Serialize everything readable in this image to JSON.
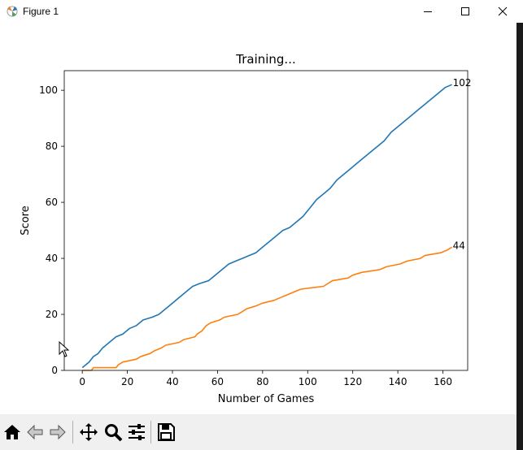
{
  "window": {
    "title": "Figure 1",
    "minimize_icon": "minimize-icon",
    "maximize_icon": "maximize-icon",
    "close_icon": "close-icon"
  },
  "chart_data": {
    "type": "line",
    "title": "Training...",
    "xlabel": "Number of Games",
    "ylabel": "Score",
    "xlim": [
      -8,
      171
    ],
    "ylim": [
      0,
      107
    ],
    "xticks": [
      0,
      20,
      40,
      60,
      80,
      100,
      120,
      140,
      160
    ],
    "yticks": [
      0,
      20,
      40,
      60,
      80,
      100
    ],
    "grid": false,
    "series": [
      {
        "color": "#1f77b4",
        "end_label": "102",
        "points": [
          [
            0,
            1
          ],
          [
            3,
            3
          ],
          [
            5,
            5
          ],
          [
            7,
            6
          ],
          [
            9,
            8
          ],
          [
            12,
            10
          ],
          [
            15,
            12
          ],
          [
            18,
            13
          ],
          [
            21,
            15
          ],
          [
            24,
            16
          ],
          [
            27,
            18
          ],
          [
            31,
            19
          ],
          [
            34,
            20
          ],
          [
            37,
            22
          ],
          [
            40,
            24
          ],
          [
            43,
            26
          ],
          [
            46,
            28
          ],
          [
            49,
            30
          ],
          [
            52,
            31
          ],
          [
            56,
            32
          ],
          [
            59,
            34
          ],
          [
            62,
            36
          ],
          [
            65,
            38
          ],
          [
            68,
            39
          ],
          [
            71,
            40
          ],
          [
            74,
            41
          ],
          [
            77,
            42
          ],
          [
            80,
            44
          ],
          [
            83,
            46
          ],
          [
            86,
            48
          ],
          [
            89,
            50
          ],
          [
            92,
            51
          ],
          [
            95,
            53
          ],
          [
            98,
            55
          ],
          [
            101,
            58
          ],
          [
            104,
            61
          ],
          [
            107,
            63
          ],
          [
            110,
            65
          ],
          [
            113,
            68
          ],
          [
            116,
            70
          ],
          [
            119,
            72
          ],
          [
            122,
            74
          ],
          [
            125,
            76
          ],
          [
            128,
            78
          ],
          [
            131,
            80
          ],
          [
            134,
            82
          ],
          [
            137,
            85
          ],
          [
            140,
            87
          ],
          [
            143,
            89
          ],
          [
            146,
            91
          ],
          [
            149,
            93
          ],
          [
            152,
            95
          ],
          [
            155,
            97
          ],
          [
            158,
            99
          ],
          [
            161,
            101
          ],
          [
            164,
            102
          ]
        ]
      },
      {
        "color": "#ff7f0e",
        "end_label": "44",
        "points": [
          [
            0,
            0
          ],
          [
            4,
            0
          ],
          [
            5,
            1
          ],
          [
            15,
            1
          ],
          [
            16,
            2
          ],
          [
            18,
            3
          ],
          [
            24,
            4
          ],
          [
            26,
            5
          ],
          [
            30,
            6
          ],
          [
            32,
            7
          ],
          [
            35,
            8
          ],
          [
            37,
            9
          ],
          [
            43,
            10
          ],
          [
            45,
            11
          ],
          [
            50,
            12
          ],
          [
            51,
            13
          ],
          [
            53,
            14
          ],
          [
            55,
            16
          ],
          [
            57,
            17
          ],
          [
            61,
            18
          ],
          [
            63,
            19
          ],
          [
            69,
            20
          ],
          [
            71,
            21
          ],
          [
            73,
            22
          ],
          [
            77,
            23
          ],
          [
            80,
            24
          ],
          [
            85,
            25
          ],
          [
            88,
            26
          ],
          [
            91,
            27
          ],
          [
            94,
            28
          ],
          [
            97,
            29
          ],
          [
            107,
            30
          ],
          [
            111,
            32
          ],
          [
            118,
            33
          ],
          [
            120,
            34
          ],
          [
            124,
            35
          ],
          [
            132,
            36
          ],
          [
            135,
            37
          ],
          [
            141,
            38
          ],
          [
            144,
            39
          ],
          [
            150,
            40
          ],
          [
            152,
            41
          ],
          [
            159,
            42
          ],
          [
            162,
            43
          ],
          [
            164,
            44
          ]
        ]
      }
    ]
  },
  "toolbar": {
    "buttons": [
      "home-icon",
      "back-icon",
      "forward-icon",
      "pan-icon",
      "zoom-icon",
      "configure-subplots-icon",
      "save-icon"
    ]
  }
}
